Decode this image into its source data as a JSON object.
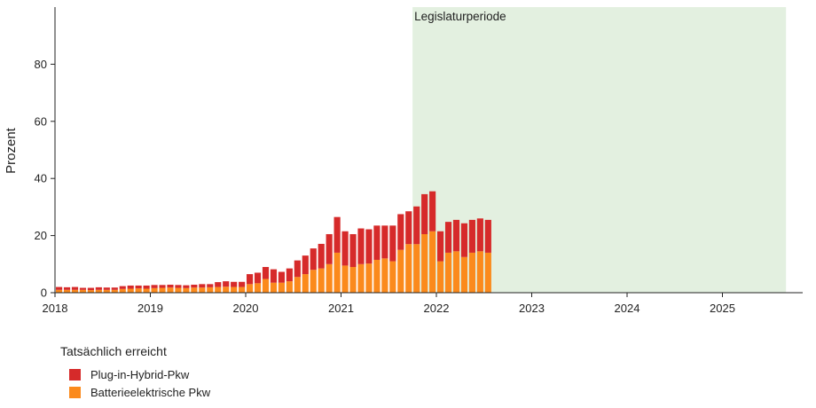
{
  "chart_data": {
    "type": "bar",
    "stacked": true,
    "ylabel": "Prozent",
    "ylim": [
      0,
      100
    ],
    "yticks": [
      0,
      20,
      40,
      60,
      80
    ],
    "xlim": [
      "2018-01-01",
      "2025-12-01"
    ],
    "xticks": [
      "2018",
      "2019",
      "2020",
      "2021",
      "2022",
      "2023",
      "2024",
      "2025"
    ],
    "x": [
      "2018-01",
      "2018-02",
      "2018-03",
      "2018-04",
      "2018-05",
      "2018-06",
      "2018-07",
      "2018-08",
      "2018-09",
      "2018-10",
      "2018-11",
      "2018-12",
      "2019-01",
      "2019-02",
      "2019-03",
      "2019-04",
      "2019-05",
      "2019-06",
      "2019-07",
      "2019-08",
      "2019-09",
      "2019-10",
      "2019-11",
      "2019-12",
      "2020-01",
      "2020-02",
      "2020-03",
      "2020-04",
      "2020-05",
      "2020-06",
      "2020-07",
      "2020-08",
      "2020-09",
      "2020-10",
      "2020-11",
      "2020-12",
      "2021-01",
      "2021-02",
      "2021-03",
      "2021-04",
      "2021-05",
      "2021-06",
      "2021-07",
      "2021-08",
      "2021-09",
      "2021-10",
      "2021-11",
      "2021-12",
      "2022-01",
      "2022-02",
      "2022-03",
      "2022-04",
      "2022-05",
      "2022-06",
      "2022-07"
    ],
    "series": [
      {
        "name": "Batterieelektrische Pkw",
        "color": "#fb8a1c",
        "values": [
          1.0,
          1.0,
          1.0,
          1.0,
          0.9,
          1.0,
          1.0,
          1.0,
          1.3,
          1.4,
          1.5,
          1.4,
          1.6,
          1.7,
          1.8,
          1.7,
          1.6,
          1.8,
          1.8,
          1.9,
          2.0,
          2.1,
          2.0,
          2.0,
          3.0,
          3.3,
          4.8,
          3.5,
          3.5,
          4.0,
          5.5,
          6.5,
          8.0,
          8.5,
          10.0,
          14.0,
          9.5,
          9.0,
          10.0,
          10.2,
          11.5,
          12.0,
          11.0,
          15.0,
          17.0,
          17.0,
          20.5,
          21.5,
          11.0,
          14.0,
          14.5,
          12.5,
          14.0,
          14.5,
          14.0
        ]
      },
      {
        "name": "Plug-in-Hybrid-Pkw",
        "color": "#d62a2a",
        "values": [
          1.0,
          0.9,
          1.0,
          0.7,
          0.8,
          0.9,
          0.8,
          0.8,
          1.0,
          1.1,
          1.0,
          1.1,
          1.1,
          1.0,
          1.0,
          1.0,
          1.0,
          1.0,
          1.2,
          1.1,
          1.7,
          1.9,
          1.8,
          1.8,
          3.5,
          3.7,
          4.2,
          4.7,
          3.8,
          4.5,
          5.8,
          6.5,
          7.5,
          8.6,
          10.5,
          12.5,
          12.0,
          11.5,
          12.5,
          12.0,
          12.0,
          11.5,
          12.5,
          12.5,
          11.5,
          13.2,
          14.0,
          14.0,
          10.5,
          10.8,
          11.0,
          11.8,
          11.5,
          11.5,
          11.5
        ]
      }
    ],
    "shaded_region": {
      "label": "Legislaturperiode",
      "start": "2021-10-01",
      "end": "2025-09-01",
      "color": "#e3f0e0"
    }
  },
  "legend": {
    "title": "Tatsächlich erreicht",
    "items": [
      {
        "label": "Plug-in-Hybrid-Pkw",
        "color": "#d62a2a"
      },
      {
        "label": "Batterieelektrische Pkw",
        "color": "#fb8a1c"
      }
    ]
  }
}
